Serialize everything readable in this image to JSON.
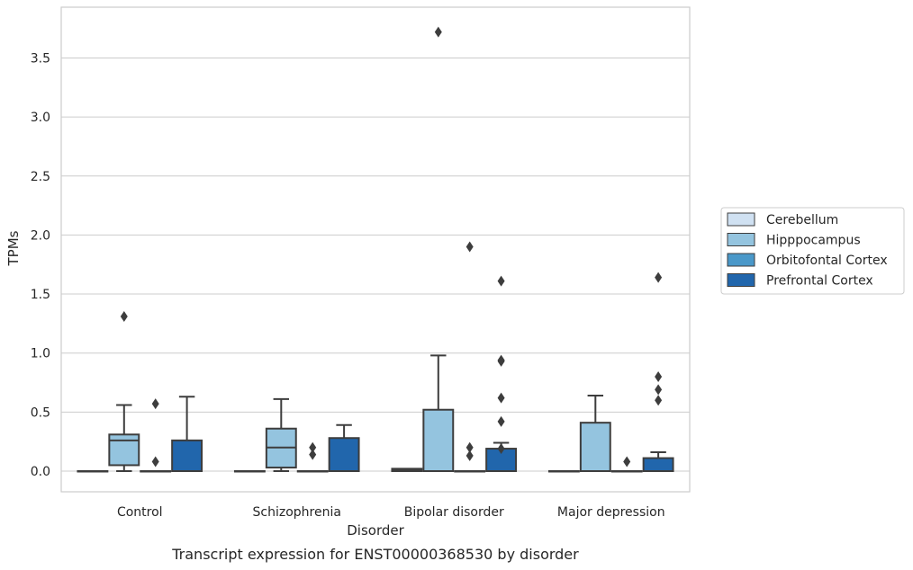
{
  "chart_data": {
    "type": "box",
    "caption": "Transcript expression for ENST00000368530 by disorder",
    "xlabel": "Disorder",
    "ylabel": "TPMs",
    "ylim": [
      -0.18,
      3.9
    ],
    "yticks": [
      "0.0",
      "0.5",
      "1.0",
      "1.5",
      "2.0",
      "2.5",
      "3.0",
      "3.5"
    ],
    "grid": "horizontal",
    "legend_position": "right",
    "categories": [
      "Control",
      "Schizophrenia",
      "Bipolar disorder",
      "Major depression"
    ],
    "series": [
      {
        "name": "Cerebellum",
        "color": "#d0e1f2",
        "boxes": [
          {
            "q1": 0,
            "median": 0,
            "q3": 0,
            "whisker_low": 0,
            "whisker_high": 0,
            "outliers": []
          },
          {
            "q1": 0,
            "median": 0,
            "q3": 0,
            "whisker_low": 0,
            "whisker_high": 0,
            "outliers": []
          },
          {
            "q1": 0,
            "median": 0.01,
            "q3": 0.02,
            "whisker_low": 0,
            "whisker_high": 0.02,
            "outliers": []
          },
          {
            "q1": 0,
            "median": 0,
            "q3": 0,
            "whisker_low": 0,
            "whisker_high": 0,
            "outliers": []
          }
        ]
      },
      {
        "name": "Hipppocampus",
        "color": "#94c4df",
        "boxes": [
          {
            "q1": 0.05,
            "median": 0.26,
            "q3": 0.31,
            "whisker_low": 0,
            "whisker_high": 0.56,
            "outliers": [
              1.31
            ]
          },
          {
            "q1": 0.03,
            "median": 0.2,
            "q3": 0.36,
            "whisker_low": 0,
            "whisker_high": 0.61,
            "outliers": []
          },
          {
            "q1": 0,
            "median": 0,
            "q3": 0.52,
            "whisker_low": 0,
            "whisker_high": 0.98,
            "outliers": [
              3.72
            ]
          },
          {
            "q1": 0,
            "median": 0,
            "q3": 0.41,
            "whisker_low": 0,
            "whisker_high": 0.64,
            "outliers": []
          }
        ]
      },
      {
        "name": "Orbitofontal Cortex",
        "color": "#4a98c9",
        "boxes": [
          {
            "q1": 0,
            "median": 0,
            "q3": 0,
            "whisker_low": 0,
            "whisker_high": 0,
            "outliers": [
              0.57,
              0.08
            ]
          },
          {
            "q1": 0,
            "median": 0,
            "q3": 0,
            "whisker_low": 0,
            "whisker_high": 0,
            "outliers": [
              0.2,
              0.14
            ]
          },
          {
            "q1": 0,
            "median": 0,
            "q3": 0,
            "whisker_low": 0,
            "whisker_high": 0,
            "outliers": [
              1.9,
              0.2,
              0.13
            ]
          },
          {
            "q1": 0,
            "median": 0,
            "q3": 0,
            "whisker_low": 0,
            "whisker_high": 0,
            "outliers": [
              0.08
            ]
          }
        ]
      },
      {
        "name": "Prefrontal Cortex",
        "color": "#2166ac",
        "boxes": [
          {
            "q1": 0,
            "median": 0,
            "q3": 0.26,
            "whisker_low": 0,
            "whisker_high": 0.63,
            "outliers": []
          },
          {
            "q1": 0,
            "median": 0,
            "q3": 0.28,
            "whisker_low": 0,
            "whisker_high": 0.39,
            "outliers": []
          },
          {
            "q1": 0,
            "median": 0,
            "q3": 0.19,
            "whisker_low": 0,
            "whisker_high": 0.24,
            "outliers": [
              1.61,
              0.94,
              0.93,
              0.62,
              0.42,
              0.19
            ]
          },
          {
            "q1": 0,
            "median": 0,
            "q3": 0.11,
            "whisker_low": 0,
            "whisker_high": 0.16,
            "outliers": [
              1.64,
              0.8,
              0.69,
              0.6
            ]
          }
        ]
      }
    ]
  }
}
